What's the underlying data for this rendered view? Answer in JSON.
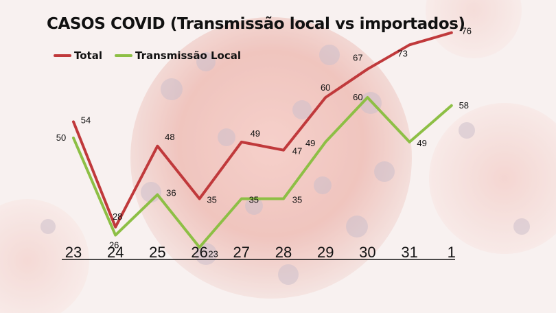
{
  "chart_data": {
    "type": "line",
    "title": "CASOS COVID (Transmissão local vs importados)",
    "categories": [
      "23",
      "24",
      "25",
      "26",
      "27",
      "28",
      "29",
      "30",
      "31",
      "1"
    ],
    "series": [
      {
        "name": "Total",
        "color": "#c0393b",
        "values": [
          54,
          28,
          48,
          35,
          49,
          47,
          60,
          67,
          73,
          76
        ]
      },
      {
        "name": "Transmissão Local",
        "color": "#8dbf45",
        "values": [
          50,
          26,
          36,
          23,
          35,
          35,
          49,
          60,
          49,
          58
        ]
      }
    ],
    "legend_position": "top-left",
    "grid": false
  }
}
